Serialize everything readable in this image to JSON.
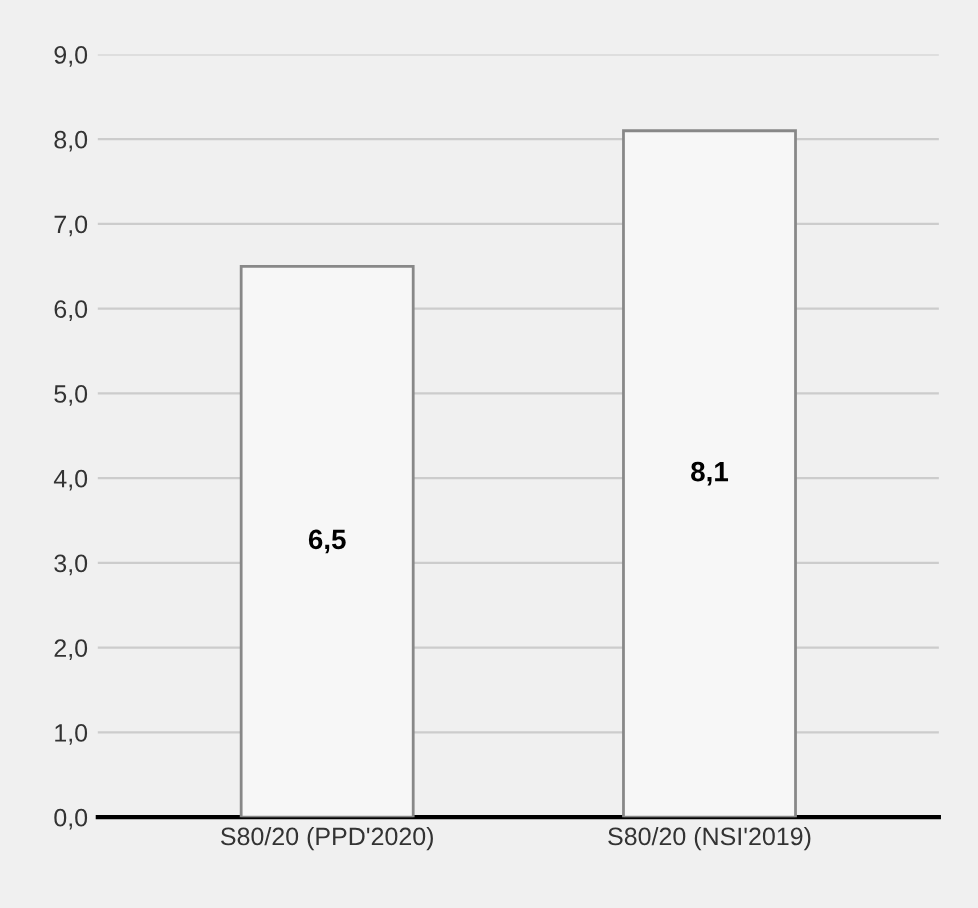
{
  "chart_data": {
    "type": "bar",
    "categories": [
      "S80/20 (PPD'2020)",
      "S80/20 (NSI'2019)"
    ],
    "values": [
      6.5,
      8.1
    ],
    "color": "#f7f7f7",
    "value_labels": [
      "6,5",
      "8,1"
    ],
    "ylim": [
      0,
      9
    ],
    "yticks": [
      {
        "value": 0,
        "label": "0,0"
      },
      {
        "value": 1,
        "label": "1,0"
      },
      {
        "value": 2,
        "label": "2,0"
      },
      {
        "value": 3,
        "label": "3,0"
      },
      {
        "value": 4,
        "label": "4,0"
      },
      {
        "value": 5,
        "label": "5,0"
      },
      {
        "value": 6,
        "label": "6,0"
      },
      {
        "value": 7,
        "label": "7,0"
      },
      {
        "value": 8,
        "label": "8,0"
      },
      {
        "value": 9,
        "label": "9,0"
      }
    ],
    "grid": "y"
  }
}
